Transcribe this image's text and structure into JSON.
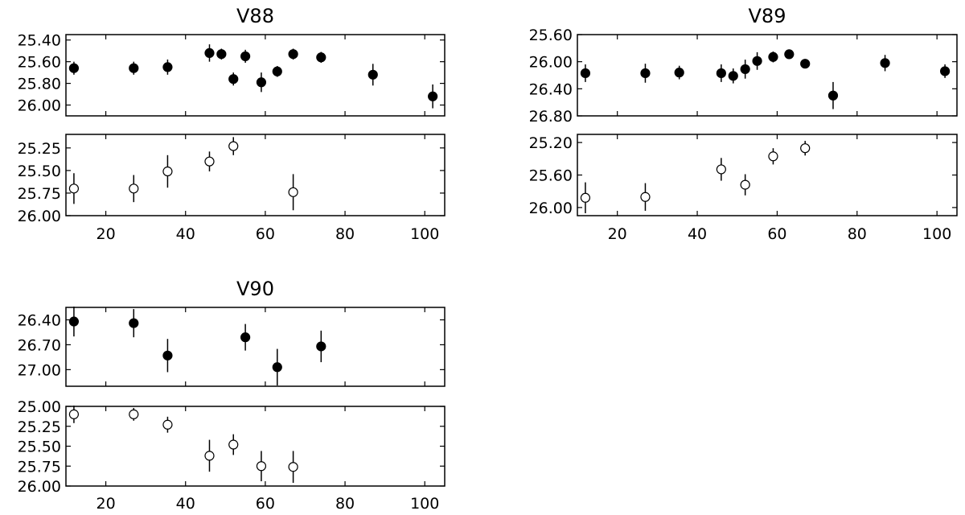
{
  "chart_data": [
    {
      "type": "scatter",
      "title": "V88",
      "panels": [
        {
          "name": "",
          "marker": "filled",
          "ylim": [
            26.1,
            25.35
          ],
          "yticks": [
            "25.40",
            "25.60",
            "25.80",
            "26.00"
          ],
          "points": [
            {
              "x": 12,
              "y": 25.66,
              "err": 0.06
            },
            {
              "x": 27,
              "y": 25.66,
              "err": 0.06
            },
            {
              "x": 35.5,
              "y": 25.65,
              "err": 0.07
            },
            {
              "x": 46,
              "y": 25.52,
              "err": 0.08
            },
            {
              "x": 49,
              "y": 25.53,
              "err": 0.05
            },
            {
              "x": 52,
              "y": 25.76,
              "err": 0.06
            },
            {
              "x": 55,
              "y": 25.55,
              "err": 0.06
            },
            {
              "x": 59,
              "y": 25.79,
              "err": 0.09
            },
            {
              "x": 63,
              "y": 25.69,
              "err": 0.05
            },
            {
              "x": 67,
              "y": 25.53,
              "err": 0.05
            },
            {
              "x": 74,
              "y": 25.56,
              "err": 0.05
            },
            {
              "x": 87,
              "y": 25.72,
              "err": 0.1
            },
            {
              "x": 102,
              "y": 25.92,
              "err": 0.11
            }
          ]
        },
        {
          "name": "",
          "marker": "open",
          "ylim": [
            26.0,
            25.1
          ],
          "yticks": [
            "25.25",
            "25.50",
            "25.75",
            "26.00"
          ],
          "points": [
            {
              "x": 12,
              "y": 25.7,
              "err": 0.17
            },
            {
              "x": 27,
              "y": 25.7,
              "err": 0.15
            },
            {
              "x": 35.5,
              "y": 25.51,
              "err": 0.18
            },
            {
              "x": 46,
              "y": 25.4,
              "err": 0.11
            },
            {
              "x": 52,
              "y": 25.23,
              "err": 0.1
            },
            {
              "x": 67,
              "y": 25.74,
              "err": 0.2
            }
          ]
        }
      ],
      "xlim": [
        10,
        105
      ],
      "xticks": [
        20,
        40,
        60,
        80,
        100
      ]
    },
    {
      "type": "scatter",
      "title": "V89",
      "panels": [
        {
          "name": "",
          "marker": "filled",
          "ylim": [
            26.8,
            25.6
          ],
          "yticks": [
            "25.60",
            "26.00",
            "26.40",
            "26.80"
          ],
          "points": [
            {
              "x": 12,
              "y": 26.17,
              "err": 0.13
            },
            {
              "x": 27,
              "y": 26.17,
              "err": 0.14
            },
            {
              "x": 35.5,
              "y": 26.16,
              "err": 0.1
            },
            {
              "x": 46,
              "y": 26.17,
              "err": 0.13
            },
            {
              "x": 49,
              "y": 26.21,
              "err": 0.11
            },
            {
              "x": 52,
              "y": 26.11,
              "err": 0.14
            },
            {
              "x": 55,
              "y": 25.99,
              "err": 0.13
            },
            {
              "x": 59,
              "y": 25.93,
              "err": 0.08
            },
            {
              "x": 63,
              "y": 25.89,
              "err": 0.06
            },
            {
              "x": 67,
              "y": 26.03,
              "err": 0.05
            },
            {
              "x": 74,
              "y": 26.5,
              "err": 0.2
            },
            {
              "x": 87,
              "y": 26.02,
              "err": 0.12
            },
            {
              "x": 102,
              "y": 26.14,
              "err": 0.1
            }
          ]
        },
        {
          "name": "",
          "marker": "open",
          "ylim": [
            26.1,
            25.1
          ],
          "yticks": [
            "25.20",
            "25.60",
            "26.00"
          ],
          "points": [
            {
              "x": 12,
              "y": 25.88,
              "err": 0.19
            },
            {
              "x": 27,
              "y": 25.87,
              "err": 0.17
            },
            {
              "x": 46,
              "y": 25.53,
              "err": 0.14
            },
            {
              "x": 52,
              "y": 25.72,
              "err": 0.13
            },
            {
              "x": 59,
              "y": 25.37,
              "err": 0.1
            },
            {
              "x": 67,
              "y": 25.27,
              "err": 0.09
            }
          ]
        }
      ],
      "xlim": [
        10,
        105
      ],
      "xticks": [
        20,
        40,
        60,
        80,
        100
      ]
    },
    {
      "type": "scatter",
      "title": "V90",
      "panels": [
        {
          "name": "",
          "marker": "filled",
          "ylim": [
            27.2,
            26.25
          ],
          "yticks": [
            "26.40",
            "26.70",
            "27.00"
          ],
          "points": [
            {
              "x": 12,
              "y": 26.42,
              "err": 0.18
            },
            {
              "x": 27,
              "y": 26.44,
              "err": 0.17
            },
            {
              "x": 35.5,
              "y": 26.83,
              "err": 0.2
            },
            {
              "x": 55,
              "y": 26.61,
              "err": 0.16
            },
            {
              "x": 63,
              "y": 26.97,
              "err": 0.22
            },
            {
              "x": 74,
              "y": 26.72,
              "err": 0.19
            }
          ]
        },
        {
          "name": "",
          "marker": "open",
          "ylim": [
            26.0,
            25.0
          ],
          "yticks": [
            "25.00",
            "25.25",
            "25.50",
            "25.75",
            "26.00"
          ],
          "points": [
            {
              "x": 12,
              "y": 25.1,
              "err": 0.11
            },
            {
              "x": 27,
              "y": 25.1,
              "err": 0.08
            },
            {
              "x": 35.5,
              "y": 25.23,
              "err": 0.1
            },
            {
              "x": 46,
              "y": 25.62,
              "err": 0.2
            },
            {
              "x": 52,
              "y": 25.48,
              "err": 0.13
            },
            {
              "x": 59,
              "y": 25.75,
              "err": 0.19
            },
            {
              "x": 67,
              "y": 25.76,
              "err": 0.2
            }
          ]
        }
      ],
      "xlim": [
        10,
        105
      ],
      "xticks": [
        20,
        40,
        60,
        80,
        100
      ]
    }
  ]
}
